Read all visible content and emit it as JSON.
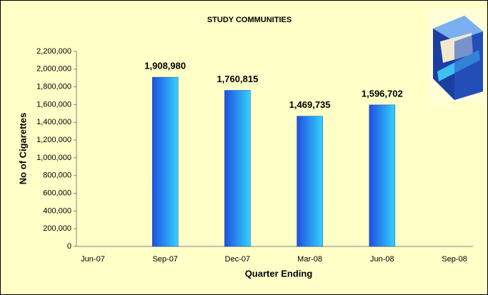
{
  "chart_data": {
    "type": "bar",
    "title": "STUDY COMMUNITIES",
    "x_label": "Quarter Ending",
    "y_label": "No of Cigarettes",
    "categories": [
      "Jun-07",
      "Sep-07",
      "Dec-07",
      "Mar-08",
      "Jun-08",
      "Sep-08"
    ],
    "values": [
      null,
      1908980,
      1760815,
      1469735,
      1596702,
      null
    ],
    "value_labels": [
      null,
      "1,908,980",
      "1,760,815",
      "1,469,735",
      "1,596,702",
      null
    ],
    "color": "#1f5fe8",
    "ylim": [
      0,
      2200000
    ],
    "yticks": [
      {
        "value": 0,
        "label": "0"
      },
      {
        "value": 200000,
        "label": "200,000"
      },
      {
        "value": 400000,
        "label": "400,000"
      },
      {
        "value": 600000,
        "label": "600,000"
      },
      {
        "value": 800000,
        "label": "800,000"
      },
      {
        "value": 1000000,
        "label": "1,000,000"
      },
      {
        "value": 1200000,
        "label": "1,200,000"
      },
      {
        "value": 1400000,
        "label": "1,400,000"
      },
      {
        "value": 1600000,
        "label": "1,600,000"
      },
      {
        "value": 1800000,
        "label": "1,800,000"
      },
      {
        "value": 2000000,
        "label": "2,000,000"
      },
      {
        "value": 2200000,
        "label": "2,200,000"
      }
    ],
    "grid": false
  }
}
